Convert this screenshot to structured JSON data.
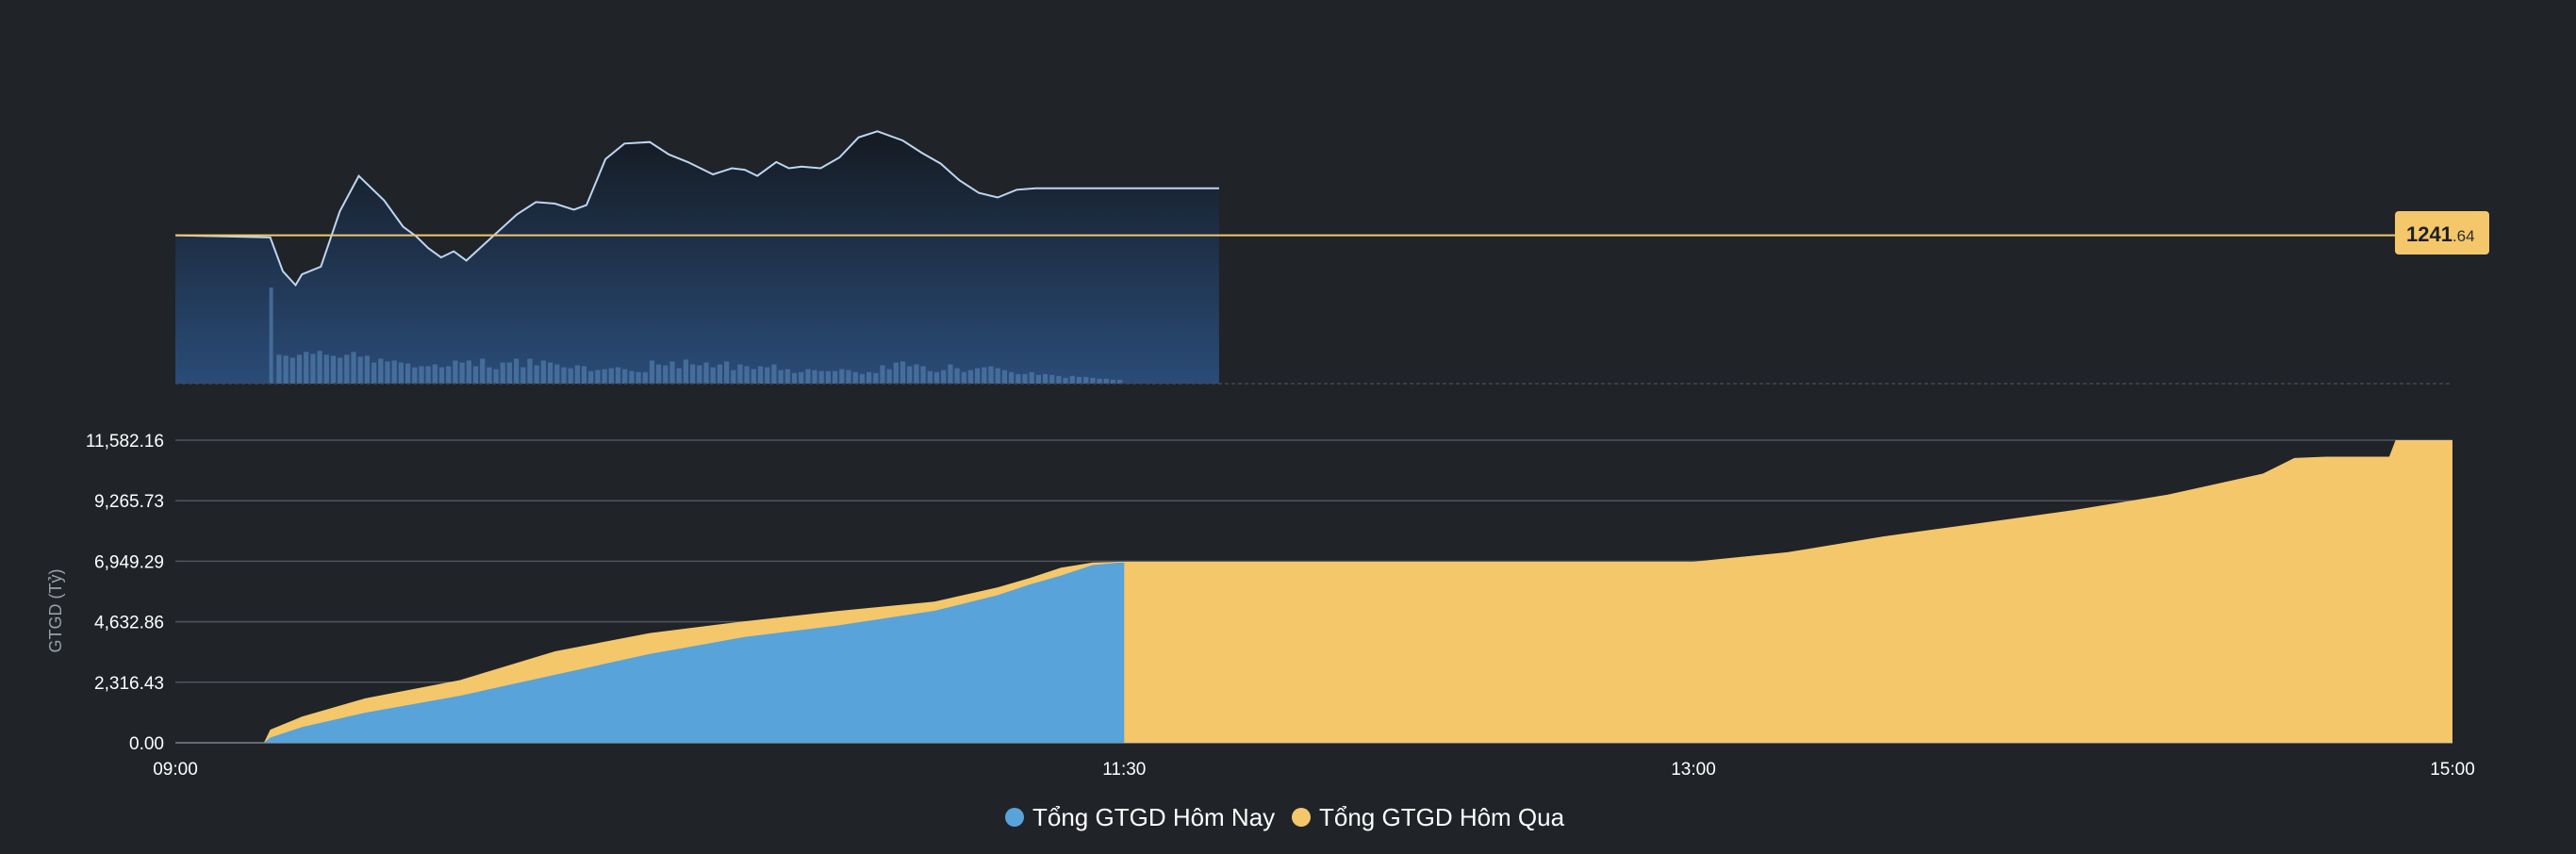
{
  "colors": {
    "background": "#202328",
    "today": "#58a3da",
    "yesterday": "#f4c76a",
    "index_line": "#bcd6f2",
    "reference_line": "#f4c76a",
    "grid": "#51555c"
  },
  "reference": {
    "integer": "1241",
    "decimal": ".64"
  },
  "chart_data": [
    {
      "type": "line",
      "x_unit": "time",
      "x_range": [
        "09:00",
        "15:00"
      ],
      "reference_value": 1241.64,
      "y_range": [
        1232.0,
        1250.5
      ],
      "series": [
        {
          "x": [
            "09:00",
            "09:15",
            "09:17",
            "09:19",
            "09:20",
            "09:23",
            "09:26",
            "09:29",
            "09:33",
            "09:36",
            "09:38",
            "09:40",
            "09:42",
            "09:44",
            "09:46",
            "09:50",
            "09:54",
            "09:57",
            "10:00",
            "10:03",
            "10:05",
            "10:08",
            "10:11",
            "10:15",
            "10:18",
            "10:21",
            "10:25",
            "10:28",
            "10:30",
            "10:32",
            "10:35",
            "10:37",
            "10:39",
            "10:42",
            "10:45",
            "10:48",
            "10:51",
            "10:55",
            "10:58",
            "11:01",
            "11:04",
            "11:07",
            "11:10",
            "11:13",
            "11:16",
            "11:18",
            "11:20",
            "11:23",
            "11:25",
            "11:27",
            "11:30",
            "11:32",
            "11:33",
            "11:40",
            "11:45"
          ],
          "values": [
            1241.64,
            1241.5,
            1239.3,
            1238.4,
            1239.1,
            1239.6,
            1243.2,
            1245.5,
            1243.9,
            1242.2,
            1241.6,
            1240.8,
            1240.2,
            1240.6,
            1240.0,
            1241.5,
            1243.0,
            1243.8,
            1243.7,
            1243.3,
            1243.6,
            1246.6,
            1247.6,
            1247.7,
            1246.9,
            1246.4,
            1245.6,
            1246.0,
            1245.9,
            1245.5,
            1246.4,
            1246.0,
            1246.1,
            1246.0,
            1246.7,
            1248.0,
            1248.4,
            1247.8,
            1247.0,
            1246.3,
            1245.2,
            1244.4,
            1244.1,
            1244.6,
            1244.7,
            1244.7,
            1244.7,
            1244.7,
            1244.7,
            1244.7,
            1244.7,
            1244.7,
            1244.7,
            1244.7,
            1244.7
          ]
        }
      ]
    },
    {
      "type": "bar",
      "x_unit": "time",
      "x_range": [
        "09:00",
        "15:00"
      ],
      "first_bar": {
        "x": "09:15",
        "value": 100
      },
      "bars_start": "09:16",
      "bars_end": "11:30",
      "bar_values": [
        30,
        29,
        27,
        30,
        33,
        31,
        34,
        30,
        29,
        27,
        30,
        33,
        28,
        29,
        22,
        26,
        23,
        24,
        22,
        21,
        17,
        18,
        18,
        20,
        17,
        18,
        24,
        22,
        24,
        18,
        26,
        17,
        15,
        22,
        22,
        26,
        17,
        26,
        19,
        24,
        22,
        20,
        17,
        16,
        19,
        18,
        13,
        14,
        15,
        16,
        17,
        15,
        13,
        12,
        12,
        24,
        20,
        19,
        23,
        16,
        25,
        20,
        19,
        22,
        17,
        20,
        23,
        14,
        20,
        18,
        15,
        18,
        17,
        20,
        14,
        15,
        11,
        12,
        15,
        14,
        13,
        13,
        13,
        15,
        14,
        12,
        10,
        12,
        11,
        19,
        15,
        22,
        23,
        18,
        20,
        18,
        13,
        12,
        14,
        20,
        16,
        12,
        14,
        16,
        17,
        18,
        16,
        14,
        12,
        10,
        10,
        12,
        9,
        10,
        9,
        8,
        6,
        8,
        7,
        7,
        6,
        5,
        5,
        4,
        4
      ]
    },
    {
      "type": "area",
      "ylabel": "GTGD (Tỷ)",
      "x_ticks": [
        "09:00",
        "11:30",
        "13:00",
        "15:00"
      ],
      "y_ticks": [
        "0.00",
        "2,316.43",
        "4,632.86",
        "6,949.29",
        "9,265.73",
        "11,582.16"
      ],
      "ylim": [
        0,
        11582.16
      ],
      "legend": {
        "placement": "bottom-center"
      },
      "series": [
        {
          "name": "Tổng GTGD Hôm Nay",
          "x": [
            "09:00",
            "09:14",
            "09:15",
            "09:20",
            "09:30",
            "09:45",
            "10:00",
            "10:15",
            "10:30",
            "10:45",
            "11:00",
            "11:10",
            "11:15",
            "11:20",
            "11:25",
            "11:29",
            "11:30"
          ],
          "values": [
            0,
            0,
            200,
            600,
            1150,
            1800,
            2600,
            3400,
            4050,
            4500,
            5050,
            5650,
            6050,
            6400,
            6800,
            6890,
            6895
          ]
        },
        {
          "name": "Tổng GTGD Hôm Qua",
          "x": [
            "09:00",
            "09:14",
            "09:15",
            "09:20",
            "09:30",
            "09:45",
            "10:00",
            "10:15",
            "10:30",
            "10:45",
            "11:00",
            "11:10",
            "11:15",
            "11:20",
            "11:25",
            "11:30",
            "13:00",
            "13:15",
            "13:30",
            "13:45",
            "14:00",
            "14:15",
            "14:30",
            "14:35",
            "14:40",
            "14:45",
            "14:50",
            "14:51",
            "14:55",
            "15:00"
          ],
          "values": [
            0,
            0,
            500,
            1000,
            1700,
            2400,
            3500,
            4200,
            4650,
            5050,
            5400,
            5950,
            6300,
            6700,
            6900,
            6930,
            6930,
            7300,
            7900,
            8400,
            8900,
            9500,
            10300,
            10900,
            10950,
            10950,
            10950,
            11582,
            11582,
            11582
          ]
        }
      ]
    }
  ]
}
